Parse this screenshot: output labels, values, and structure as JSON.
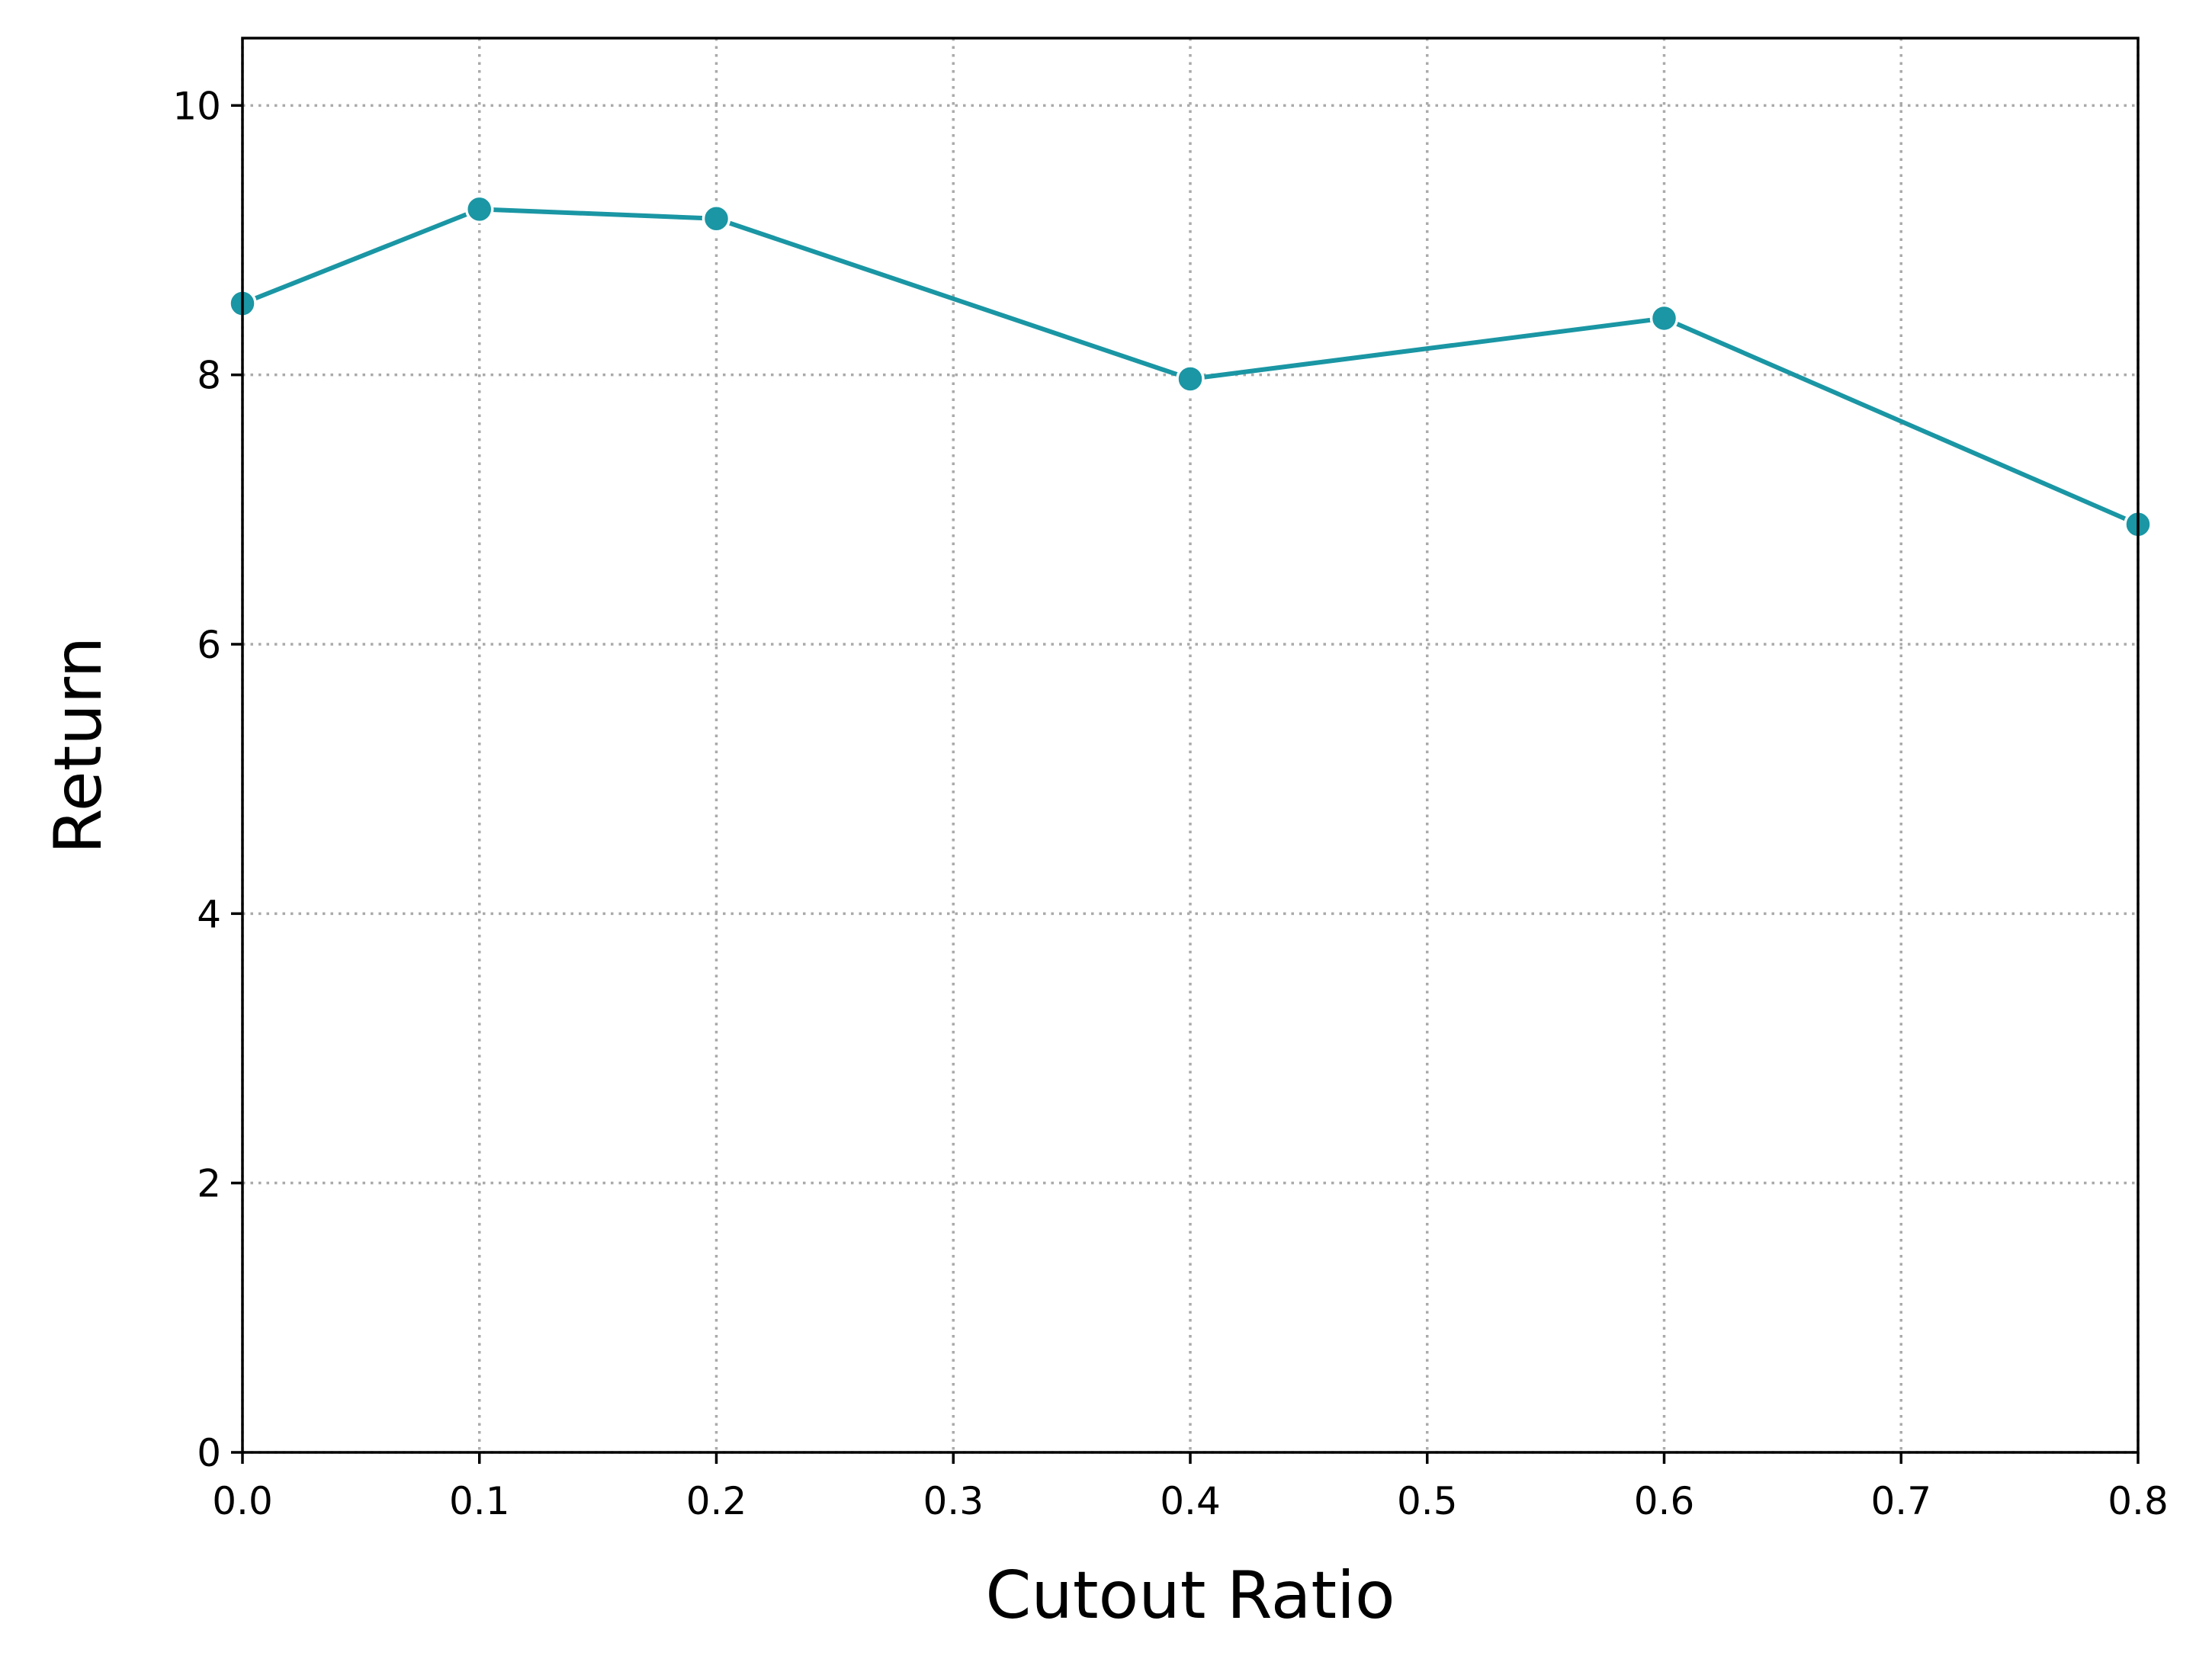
{
  "chart_data": {
    "type": "line",
    "xlabel": "Cutout Ratio",
    "ylabel": "Return",
    "xlim": [
      0.0,
      0.8
    ],
    "ylim": [
      0,
      10.5
    ],
    "xticks": [
      "0.0",
      "0.1",
      "0.2",
      "0.3",
      "0.4",
      "0.5",
      "0.6",
      "0.7",
      "0.8"
    ],
    "yticks": [
      "0",
      "2",
      "4",
      "6",
      "8",
      "10"
    ],
    "grid": true,
    "grid_style": "dotted",
    "series": [
      {
        "color": "#1a96a4",
        "marker": "circle",
        "x": [
          0.0,
          0.1,
          0.2,
          0.4,
          0.6,
          0.8
        ],
        "y": [
          8.53,
          9.23,
          9.16,
          7.97,
          8.42,
          6.89
        ]
      }
    ]
  }
}
